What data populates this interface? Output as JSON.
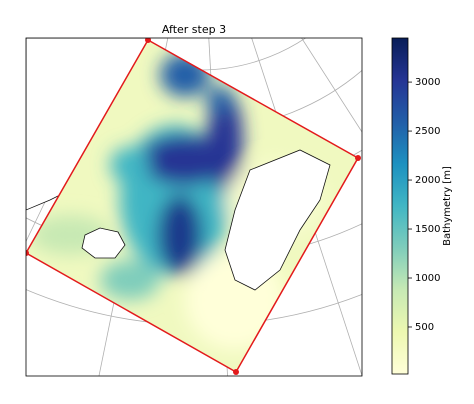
{
  "chart_data": {
    "type": "map",
    "title": "After step 3",
    "colorbar": {
      "label": "Bathymetry [m]",
      "lim": [
        20,
        3450
      ],
      "ticks": [
        500,
        1000,
        1500,
        2000,
        2500,
        3000
      ],
      "colormap": [
        "#ffffd9",
        "#edf8b1",
        "#c7e9b4",
        "#7fcdbb",
        "#41b6c4",
        "#1d91c0",
        "#225ea8",
        "#253494",
        "#081d58"
      ]
    },
    "outline_color": "#e31a1c"
  }
}
